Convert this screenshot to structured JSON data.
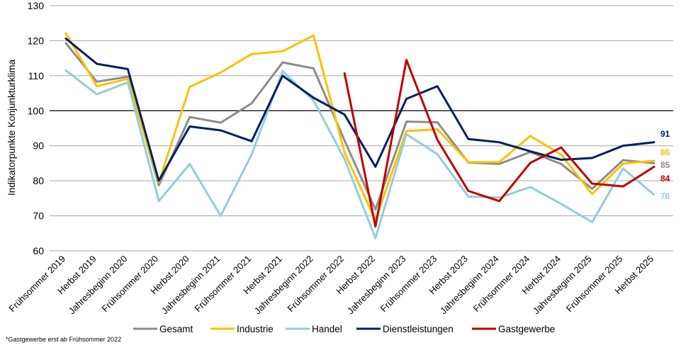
{
  "chart_data": {
    "type": "line",
    "title": "",
    "xlabel": "",
    "ylabel": "Indikatorpunkte Konjunkturklima",
    "ylim": [
      60,
      130
    ],
    "yticks": [
      60,
      70,
      80,
      90,
      100,
      110,
      120,
      130
    ],
    "grid": true,
    "reference_line": 100,
    "legend_position": "bottom",
    "categories": [
      "Frühsommer 2019",
      "Herbst 2019",
      "Jahresbeginn 2020",
      "Frühsommer 2020",
      "Herbst 2020",
      "Jahresbeginn 2021",
      "Frühsommer 2021",
      "Herbst 2021",
      "Jahresbeginn 2022",
      "Frühsommer 2022",
      "Herbst 2022",
      "Jahresbeginn 2023",
      "Frühsommer 2023",
      "Herbst 2023",
      "Jahresbeginn 2024",
      "Frühsommer 2024",
      "Herbst 2024",
      "Jahresbeginn 2025",
      "Frühsommer 2025",
      "Herbst 2025"
    ],
    "series": [
      {
        "name": "Gesamt",
        "color": "#8c8c8c",
        "values": [
          119.3,
          108.3,
          109.7,
          78.7,
          98.2,
          96.6,
          102.1,
          113.8,
          112.1,
          91.5,
          71.8,
          96.9,
          96.7,
          85.2,
          84.8,
          88.2,
          84.8,
          77.7,
          85.9,
          85.0
        ],
        "end_label": "85"
      },
      {
        "name": "Industrie",
        "color": "#ffc000",
        "values": [
          122.1,
          107.0,
          109.1,
          79.5,
          106.8,
          110.9,
          116.2,
          117.0,
          121.5,
          88.1,
          68.7,
          94.2,
          94.7,
          85.3,
          85.3,
          92.8,
          87.5,
          76.2,
          84.9,
          85.7
        ],
        "end_label": "86"
      },
      {
        "name": "Handel",
        "color": "#92cddc",
        "values": [
          111.5,
          104.7,
          108.1,
          74.2,
          84.8,
          70.0,
          87.5,
          111.3,
          102.9,
          86.2,
          63.6,
          93.3,
          87.6,
          75.5,
          75.2,
          78.2,
          73.4,
          68.2,
          83.5,
          76.0
        ],
        "end_label": "76"
      },
      {
        "name": "Dienstleistungen",
        "color": "#002060",
        "values": [
          120.6,
          113.4,
          111.9,
          80.0,
          95.5,
          94.4,
          91.3,
          110.0,
          103.7,
          98.9,
          84.0,
          103.4,
          107.0,
          91.9,
          91.0,
          88.4,
          86.0,
          86.5,
          90.0,
          91.0
        ],
        "end_label": "91"
      },
      {
        "name": "Gastgewerbe",
        "color": "#c00000",
        "values": [
          null,
          null,
          null,
          null,
          null,
          null,
          null,
          null,
          null,
          110.7,
          66.9,
          114.5,
          91.7,
          77.1,
          74.2,
          85.1,
          89.5,
          79.2,
          78.4,
          84.0
        ],
        "end_label": "84"
      }
    ],
    "footnote": "*Gastgewerbe erst ab Frühsommer 2022"
  }
}
